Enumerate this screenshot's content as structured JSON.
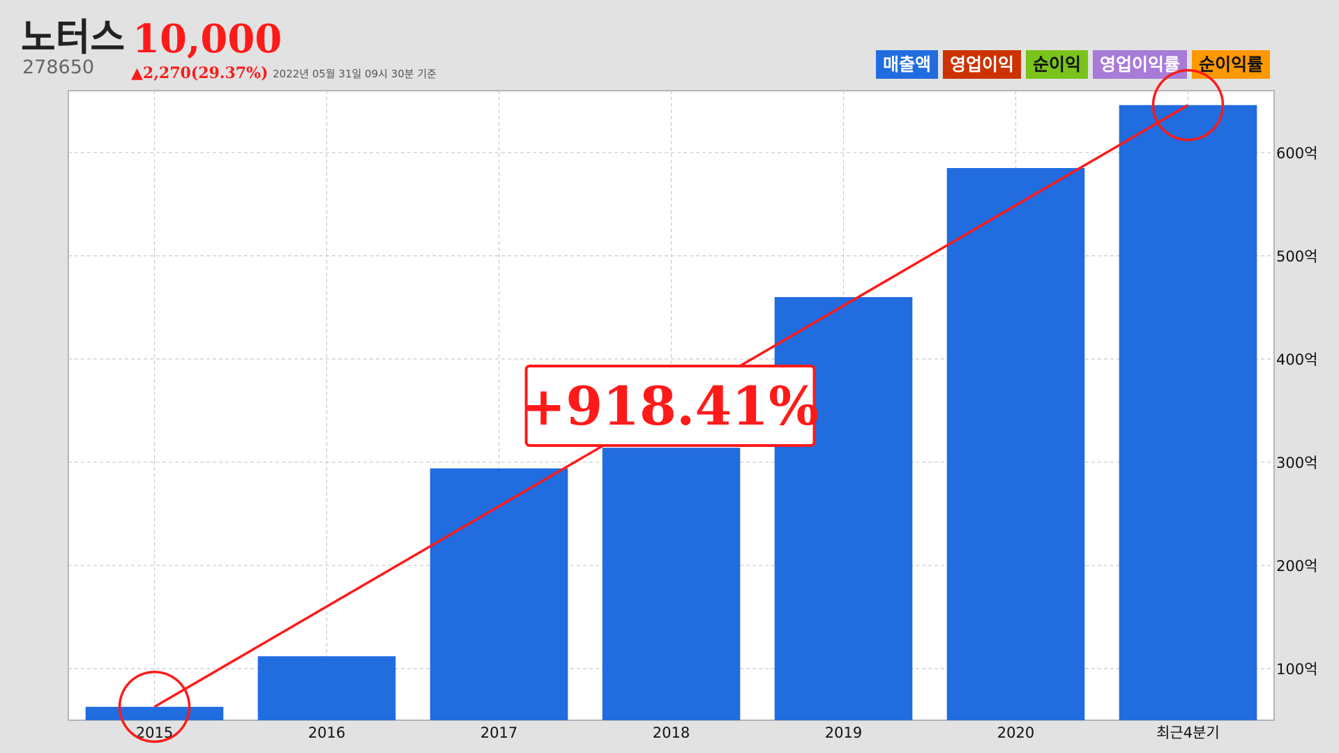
{
  "header": {
    "company_name": "노터스",
    "ticker": "278650",
    "price": "10,000",
    "change": "▲2,270(29.37%)",
    "as_of": "2022년 05월 31일 09시 30분 기준"
  },
  "legend": [
    {
      "label": "매출액",
      "color": "#216cdf",
      "text_dark": false
    },
    {
      "label": "영업이익",
      "color": "#cc3300",
      "text_dark": false
    },
    {
      "label": "순이익",
      "color": "#7ac31b",
      "text_dark": true
    },
    {
      "label": "영업이익률",
      "color": "#a77bd7",
      "text_dark": false
    },
    {
      "label": "순이익률",
      "color": "#ff9900",
      "text_dark": true
    }
  ],
  "chart_data": {
    "type": "bar",
    "categories": [
      "2015",
      "2016",
      "2017",
      "2018",
      "2019",
      "2020",
      "최근4분기"
    ],
    "series": [
      {
        "name": "매출액",
        "color": "#216cdf",
        "values": [
          63,
          112,
          294,
          314,
          460,
          585,
          646
        ]
      }
    ],
    "ylim": [
      50,
      660
    ],
    "y_ticks": [
      100,
      200,
      300,
      400,
      500,
      600
    ],
    "y_tick_labels": [
      "100억",
      "200억",
      "300억",
      "400억",
      "500억",
      "600억"
    ],
    "y_axis_side": "right",
    "grid": true,
    "grid_style": "dashed",
    "annotation": {
      "text": "+918.41%",
      "from_category_index": 0,
      "to_category_index": 6,
      "color": "#ff1a1a"
    }
  }
}
